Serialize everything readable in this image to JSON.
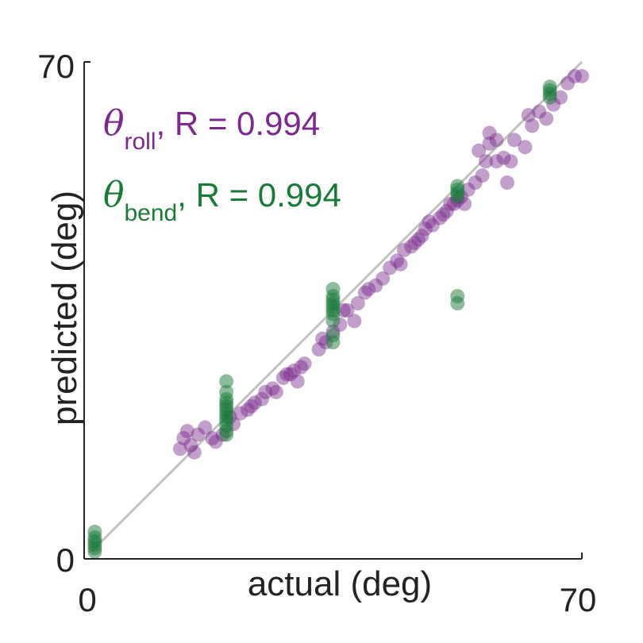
{
  "chart_data": {
    "type": "scatter",
    "xlabel": "actual (deg)",
    "ylabel": "predicted (deg)",
    "xlim": [
      0,
      70
    ],
    "ylim": [
      0,
      70
    ],
    "x_ticks": [
      "0",
      "70"
    ],
    "y_ticks": [
      "0",
      "70"
    ],
    "reference_line": {
      "from": [
        1,
        1
      ],
      "to": [
        70,
        70
      ],
      "color": "#c2c2c2"
    },
    "grid": false,
    "legend_placement": "top-left",
    "series": [
      {
        "symbol": "θ",
        "subscript": "roll",
        "label_suffix": ", R = 0.994",
        "color": "#7b2a8c",
        "opacity": 0.45,
        "points": [
          [
            14,
            17
          ],
          [
            13.5,
            15.5
          ],
          [
            14.5,
            18
          ],
          [
            15,
            16
          ],
          [
            16,
            17.5
          ],
          [
            15.5,
            15
          ],
          [
            17,
            18.5
          ],
          [
            18,
            17
          ],
          [
            18.5,
            16.5
          ],
          [
            19.5,
            17.5
          ],
          [
            20.5,
            20
          ],
          [
            21,
            19
          ],
          [
            22,
            20.5
          ],
          [
            23,
            21
          ],
          [
            23.5,
            21.5
          ],
          [
            24,
            22
          ],
          [
            25,
            22.5
          ],
          [
            25.5,
            23.5
          ],
          [
            26.5,
            24
          ],
          [
            27,
            23.5
          ],
          [
            28,
            25.5
          ],
          [
            29,
            26
          ],
          [
            29.5,
            26.5
          ],
          [
            30.5,
            27
          ],
          [
            31,
            27.5
          ],
          [
            28.5,
            26
          ],
          [
            30,
            25
          ],
          [
            33,
            29.5
          ],
          [
            34,
            30.5
          ],
          [
            35,
            32
          ],
          [
            33.5,
            31
          ],
          [
            36,
            33
          ],
          [
            37,
            35
          ],
          [
            38.5,
            36
          ],
          [
            39.5,
            37.5
          ],
          [
            36.5,
            35
          ],
          [
            38,
            33.5
          ],
          [
            40,
            38
          ],
          [
            41,
            38.5
          ],
          [
            42,
            39.5
          ],
          [
            43,
            41
          ],
          [
            44,
            42
          ],
          [
            45,
            43.5
          ],
          [
            44.5,
            41.5
          ],
          [
            46,
            44
          ],
          [
            47,
            45
          ],
          [
            48,
            46.5
          ],
          [
            49,
            47
          ],
          [
            46.5,
            44.5
          ],
          [
            47.5,
            45.5
          ],
          [
            48.5,
            47.5
          ],
          [
            50,
            48
          ],
          [
            51,
            49
          ],
          [
            52,
            50
          ],
          [
            53,
            51
          ],
          [
            50.5,
            48.5
          ],
          [
            52.5,
            50.5
          ],
          [
            51.5,
            50
          ],
          [
            54,
            52
          ],
          [
            55,
            53
          ],
          [
            56,
            54
          ],
          [
            53.5,
            50
          ],
          [
            55.5,
            57.5
          ],
          [
            57,
            58.5
          ],
          [
            58,
            56
          ],
          [
            56.5,
            56
          ],
          [
            59,
            56.5
          ],
          [
            58,
            59
          ],
          [
            60,
            56
          ],
          [
            62,
            58
          ],
          [
            62.5,
            62.5
          ],
          [
            63,
            61
          ],
          [
            64,
            63
          ],
          [
            65,
            62
          ],
          [
            66,
            64
          ],
          [
            67,
            65
          ],
          [
            68,
            67
          ],
          [
            69,
            68
          ],
          [
            70,
            68
          ],
          [
            59.5,
            53
          ],
          [
            57,
            60
          ],
          [
            60.5,
            59
          ]
        ]
      },
      {
        "symbol": "θ",
        "subscript": "bend",
        "label_suffix": ", R = 0.994",
        "color": "#1a7a3a",
        "opacity": 0.5,
        "points": [
          [
            1.5,
            1.5
          ],
          [
            1.5,
            2
          ],
          [
            1.5,
            2.5
          ],
          [
            1.5,
            3
          ],
          [
            1.5,
            1
          ],
          [
            1.5,
            3.8
          ],
          [
            20,
            17.5
          ],
          [
            20,
            18
          ],
          [
            20,
            18.8
          ],
          [
            20,
            19.5
          ],
          [
            20,
            20
          ],
          [
            20,
            20.5
          ],
          [
            20,
            21
          ],
          [
            20,
            21.5
          ],
          [
            20,
            22
          ],
          [
            20,
            22.5
          ],
          [
            20,
            23.5
          ],
          [
            20,
            25
          ],
          [
            35,
            30.5
          ],
          [
            35,
            31.5
          ],
          [
            35,
            33.5
          ],
          [
            35,
            34.5
          ],
          [
            35,
            35
          ],
          [
            35,
            35.5
          ],
          [
            35,
            36
          ],
          [
            35,
            36.5
          ],
          [
            35,
            37
          ],
          [
            35,
            38
          ],
          [
            52.5,
            51
          ],
          [
            52.5,
            51.5
          ],
          [
            52.5,
            52
          ],
          [
            52.5,
            52.5
          ],
          [
            52.5,
            37
          ],
          [
            52.5,
            36
          ],
          [
            65.5,
            65
          ],
          [
            65.5,
            65.5
          ],
          [
            65.5,
            66
          ],
          [
            65.5,
            66.5
          ]
        ]
      }
    ]
  }
}
